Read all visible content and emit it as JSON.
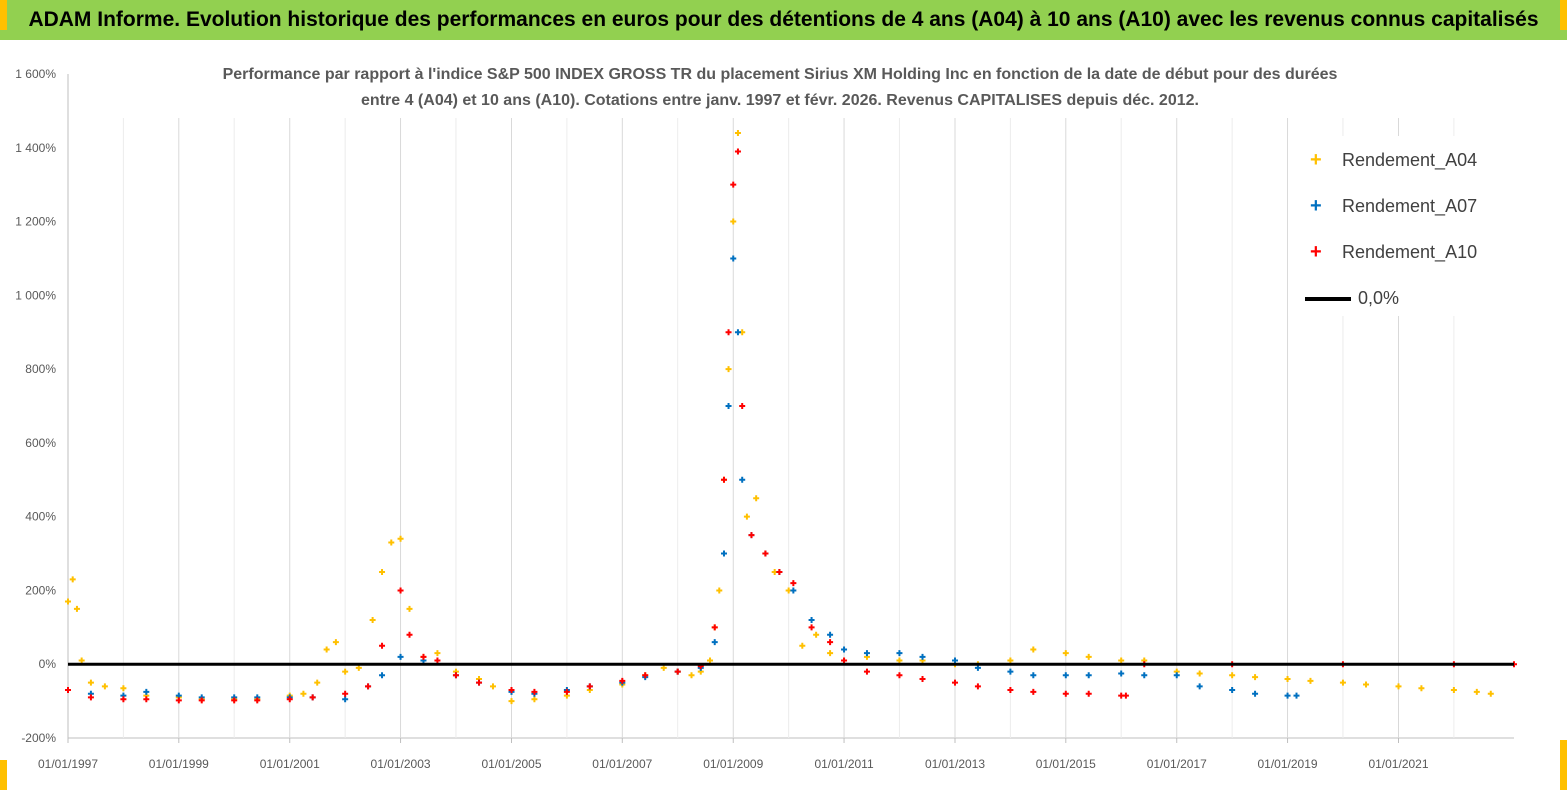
{
  "banner": {
    "title": "ADAM Informe. Evolution historique des performances en euros pour des détentions de 4 ans (A04) à 10 ans (A10) avec les revenus connus capitalisés"
  },
  "colors": {
    "banner_bg": "#92d050",
    "corner_accent": "#ffc000",
    "A04": "#ffc000",
    "A07": "#0070c0",
    "A10": "#ff0000",
    "zero_line": "#000000"
  },
  "chart_data": {
    "type": "scatter",
    "title_line1": "Performance par rapport à l'indice S&P 500 INDEX GROSS TR  du placement Sirius XM Holding Inc en fonction de la date de début pour des durées",
    "title_line2": "entre 4 (A04) et 10 ans (A10).  Cotations entre janv. 1997 et févr. 2026. Revenus CAPITALISES depuis déc. 2012.",
    "xlabel": "",
    "ylabel": "",
    "x_range": [
      "1997-01-01",
      "2023-02-01"
    ],
    "ylim": [
      -200,
      1600
    ],
    "y_ticks": [
      -200,
      0,
      200,
      400,
      600,
      800,
      1000,
      1200,
      1400,
      1600
    ],
    "y_tick_labels": [
      "-200%",
      "0%",
      "200%",
      "400%",
      "600%",
      "800%",
      "1 000%",
      "1 200%",
      "1 400%",
      "1 600%"
    ],
    "x_tick_labels": [
      "01/01/1997",
      "01/01/1999",
      "01/01/2001",
      "01/01/2003",
      "01/01/2005",
      "01/01/2007",
      "01/01/2009",
      "01/01/2011",
      "01/01/2013",
      "01/01/2015",
      "01/01/2017",
      "01/01/2019",
      "01/01/2021"
    ],
    "grid": "vertical",
    "legend_position": "top-right",
    "series": [
      {
        "name": "Rendement_A04",
        "color": "#ffc000",
        "x": [
          "1997-01-01",
          "1997-02-01",
          "1997-03-01",
          "1997-04-01",
          "1997-06-01",
          "1997-09-01",
          "1998-01-01",
          "1998-06-01",
          "1999-01-01",
          "1999-06-01",
          "2000-01-01",
          "2000-06-01",
          "2001-01-01",
          "2001-04-01",
          "2001-07-01",
          "2001-09-01",
          "2001-11-01",
          "2002-01-01",
          "2002-04-01",
          "2002-07-01",
          "2002-09-01",
          "2002-11-01",
          "2003-01-01",
          "2003-03-01",
          "2003-06-01",
          "2003-09-01",
          "2004-01-01",
          "2004-06-01",
          "2004-09-01",
          "2005-01-01",
          "2005-06-01",
          "2006-01-01",
          "2006-06-01",
          "2007-01-01",
          "2007-06-01",
          "2007-10-01",
          "2008-01-01",
          "2008-04-01",
          "2008-06-01",
          "2008-08-01",
          "2008-09-01",
          "2008-10-01",
          "2008-11-01",
          "2008-12-01",
          "2009-01-01",
          "2009-02-01",
          "2009-03-01",
          "2009-04-01",
          "2009-06-01",
          "2009-08-01",
          "2009-10-01",
          "2010-01-01",
          "2010-04-01",
          "2010-07-01",
          "2010-10-01",
          "2011-01-01",
          "2011-06-01",
          "2012-01-01",
          "2012-06-01",
          "2013-01-01",
          "2013-06-01",
          "2014-01-01",
          "2014-06-01",
          "2015-01-01",
          "2015-06-01",
          "2016-01-01",
          "2016-06-01",
          "2017-01-01",
          "2017-06-01",
          "2018-01-01",
          "2018-06-01",
          "2019-01-01",
          "2019-06-01",
          "2020-01-01",
          "2020-06-01",
          "2021-01-01",
          "2021-06-01",
          "2022-01-01",
          "2022-06-01",
          "2022-09-01"
        ],
        "y": [
          170,
          230,
          150,
          10,
          -50,
          -60,
          -65,
          -85,
          -90,
          -95,
          -95,
          -95,
          -85,
          -80,
          -50,
          40,
          60,
          -20,
          -10,
          120,
          250,
          330,
          340,
          150,
          20,
          30,
          -20,
          -40,
          -60,
          -100,
          -95,
          -85,
          -70,
          -55,
          -30,
          -10,
          -20,
          -30,
          -20,
          10,
          100,
          200,
          500,
          800,
          1200,
          1440,
          900,
          400,
          450,
          300,
          250,
          200,
          50,
          80,
          30,
          10,
          20,
          10,
          10,
          0,
          0,
          10,
          40,
          30,
          20,
          10,
          10,
          -20,
          -25,
          -30,
          -35,
          -40,
          -45,
          -50,
          -55,
          -60,
          -65,
          -70,
          -75,
          -80
        ]
      },
      {
        "name": "Rendement_A07",
        "color": "#0070c0",
        "x": [
          "1997-01-01",
          "1997-06-01",
          "1998-01-01",
          "1998-06-01",
          "1999-01-01",
          "1999-06-01",
          "2000-01-01",
          "2000-06-01",
          "2001-01-01",
          "2001-06-01",
          "2002-01-01",
          "2002-06-01",
          "2002-09-01",
          "2003-01-01",
          "2003-06-01",
          "2004-01-01",
          "2004-06-01",
          "2005-01-01",
          "2005-06-01",
          "2006-01-01",
          "2006-06-01",
          "2007-01-01",
          "2007-06-01",
          "2008-01-01",
          "2008-06-01",
          "2008-09-01",
          "2008-11-01",
          "2008-12-01",
          "2009-01-01",
          "2009-02-01",
          "2009-03-01",
          "2009-05-01",
          "2009-08-01",
          "2009-11-01",
          "2010-02-01",
          "2010-06-01",
          "2010-10-01",
          "2011-01-01",
          "2011-06-01",
          "2012-01-01",
          "2012-06-01",
          "2013-01-01",
          "2013-06-01",
          "2014-01-01",
          "2014-06-01",
          "2015-01-01",
          "2015-06-01",
          "2016-01-01",
          "2016-06-01",
          "2017-01-01",
          "2017-06-01",
          "2018-01-01",
          "2018-06-01",
          "2019-01-01",
          "2019-03-01"
        ],
        "y": [
          -70,
          -80,
          -85,
          -75,
          -85,
          -90,
          -90,
          -90,
          -90,
          -90,
          -95,
          -60,
          -30,
          20,
          10,
          -30,
          -50,
          -75,
          -80,
          -70,
          -60,
          -50,
          -35,
          -20,
          -10,
          60,
          300,
          700,
          1100,
          900,
          500,
          350,
          300,
          250,
          200,
          120,
          80,
          40,
          30,
          30,
          20,
          10,
          -10,
          -20,
          -30,
          -30,
          -30,
          -25,
          -30,
          -30,
          -60,
          -70,
          -80,
          -85,
          -85
        ]
      },
      {
        "name": "Rendement_A10",
        "color": "#ff0000",
        "x": [
          "1997-01-01",
          "1997-06-01",
          "1998-01-01",
          "1998-06-01",
          "1999-01-01",
          "1999-06-01",
          "2000-01-01",
          "2000-06-01",
          "2001-01-01",
          "2001-06-01",
          "2002-01-01",
          "2002-06-01",
          "2002-09-01",
          "2003-01-01",
          "2003-03-01",
          "2003-06-01",
          "2003-09-01",
          "2004-01-01",
          "2004-06-01",
          "2005-01-01",
          "2005-06-01",
          "2006-01-01",
          "2006-06-01",
          "2007-01-01",
          "2007-06-01",
          "2008-01-01",
          "2008-06-01",
          "2008-09-01",
          "2008-11-01",
          "2008-12-01",
          "2009-01-01",
          "2009-02-01",
          "2009-03-01",
          "2009-05-01",
          "2009-08-01",
          "2009-11-01",
          "2010-02-01",
          "2010-06-01",
          "2010-10-01",
          "2011-01-01",
          "2011-06-01",
          "2012-01-01",
          "2012-06-01",
          "2013-01-01",
          "2013-06-01",
          "2014-01-01",
          "2014-06-01",
          "2015-01-01",
          "2015-06-01",
          "2016-01-01",
          "2016-02-01",
          "2016-06-01",
          "2018-01-01",
          "2020-01-01",
          "2022-01-01",
          "2023-02-01"
        ],
        "y": [
          -70,
          -90,
          -95,
          -95,
          -98,
          -98,
          -98,
          -98,
          -95,
          -90,
          -80,
          -60,
          50,
          200,
          80,
          20,
          10,
          -30,
          -50,
          -70,
          -75,
          -75,
          -60,
          -45,
          -30,
          -20,
          -5,
          100,
          500,
          900,
          1300,
          1390,
          700,
          350,
          300,
          250,
          220,
          100,
          60,
          10,
          -20,
          -30,
          -40,
          -50,
          -60,
          -70,
          -75,
          -80,
          -80,
          -85,
          -85,
          0,
          0,
          0,
          0,
          0
        ]
      },
      {
        "name": "0,0%",
        "color": "#000000",
        "type": "line",
        "x": [
          "1997-01-01",
          "2023-02-01"
        ],
        "y": [
          0,
          0
        ]
      }
    ]
  }
}
